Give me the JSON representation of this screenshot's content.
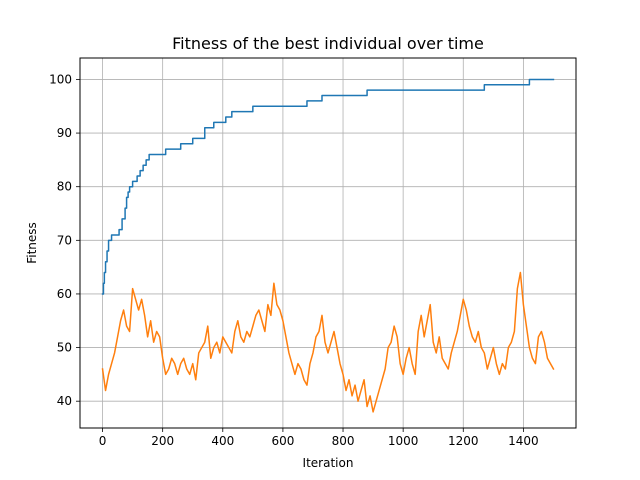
{
  "chart_data": {
    "type": "line",
    "title": "Fitness of the best individual over time",
    "xlabel": "Iteration",
    "ylabel": "Fitness",
    "xlim": [
      -75,
      1575
    ],
    "ylim": [
      35,
      104
    ],
    "xticks": [
      0,
      200,
      400,
      600,
      800,
      1000,
      1200,
      1400
    ],
    "yticks": [
      40,
      50,
      60,
      70,
      80,
      90,
      100
    ],
    "xtick_labels": [
      "0",
      "200",
      "400",
      "600",
      "800",
      "1000",
      "1200",
      "1400"
    ],
    "ytick_labels": [
      "40",
      "50",
      "60",
      "70",
      "80",
      "90",
      "100"
    ],
    "grid": true,
    "series": [
      {
        "color": "#1f77b4",
        "step": true,
        "x": [
          0,
          3,
          6,
          10,
          15,
          20,
          30,
          55,
          65,
          75,
          80,
          85,
          90,
          100,
          115,
          125,
          135,
          145,
          155,
          210,
          260,
          300,
          340,
          370,
          410,
          430,
          500,
          680,
          730,
          880,
          1270,
          1420,
          1500
        ],
        "y": [
          60,
          62,
          64,
          66,
          68,
          70,
          71,
          72,
          74,
          76,
          78,
          79,
          80,
          81,
          82,
          83,
          84,
          85,
          86,
          87,
          88,
          89,
          91,
          92,
          93,
          94,
          95,
          96,
          97,
          98,
          99,
          100,
          100
        ]
      },
      {
        "color": "#ff7f0e",
        "step": false,
        "x": [
          0,
          10,
          20,
          30,
          40,
          50,
          60,
          70,
          80,
          90,
          100,
          110,
          120,
          130,
          140,
          150,
          160,
          170,
          180,
          190,
          200,
          210,
          220,
          230,
          240,
          250,
          260,
          270,
          280,
          290,
          300,
          310,
          320,
          330,
          340,
          350,
          360,
          370,
          380,
          390,
          400,
          410,
          420,
          430,
          440,
          450,
          460,
          470,
          480,
          490,
          500,
          510,
          520,
          530,
          540,
          550,
          560,
          570,
          580,
          590,
          600,
          610,
          620,
          630,
          640,
          650,
          660,
          670,
          680,
          690,
          700,
          710,
          720,
          730,
          740,
          750,
          760,
          770,
          780,
          790,
          800,
          810,
          820,
          830,
          840,
          850,
          860,
          870,
          880,
          890,
          900,
          910,
          920,
          930,
          940,
          950,
          960,
          970,
          980,
          990,
          1000,
          1010,
          1020,
          1030,
          1040,
          1050,
          1060,
          1070,
          1080,
          1090,
          1100,
          1110,
          1120,
          1130,
          1140,
          1150,
          1160,
          1170,
          1180,
          1190,
          1200,
          1210,
          1220,
          1230,
          1240,
          1250,
          1260,
          1270,
          1280,
          1290,
          1300,
          1310,
          1320,
          1330,
          1340,
          1350,
          1360,
          1370,
          1380,
          1390,
          1400,
          1410,
          1420,
          1430,
          1440,
          1450,
          1460,
          1470,
          1480,
          1490,
          1500
        ],
        "y": [
          46,
          42,
          45,
          47,
          49,
          52,
          55,
          57,
          54,
          53,
          61,
          59,
          57,
          59,
          56,
          52,
          55,
          51,
          53,
          52,
          48,
          45,
          46,
          48,
          47,
          45,
          47,
          48,
          46,
          45,
          47,
          44,
          49,
          50,
          51,
          54,
          48,
          50,
          51,
          49,
          52,
          51,
          50,
          49,
          53,
          55,
          52,
          51,
          53,
          52,
          54,
          56,
          57,
          55,
          53,
          58,
          56,
          62,
          58,
          57,
          55,
          52,
          49,
          47,
          45,
          47,
          46,
          44,
          43,
          47,
          49,
          52,
          53,
          56,
          51,
          49,
          51,
          53,
          50,
          47,
          45,
          42,
          44,
          41,
          43,
          40,
          42,
          44,
          39,
          41,
          38,
          40,
          42,
          44,
          46,
          50,
          51,
          54,
          52,
          47,
          45,
          48,
          50,
          47,
          45,
          53,
          56,
          52,
          55,
          58,
          51,
          49,
          52,
          48,
          47,
          46,
          49,
          51,
          53,
          56,
          59,
          57,
          54,
          52,
          51,
          53,
          50,
          49,
          46,
          48,
          50,
          47,
          45,
          47,
          46,
          50,
          51,
          53,
          61,
          64,
          58,
          54,
          50,
          48,
          47,
          52,
          53,
          51,
          48,
          47,
          46
        ]
      }
    ]
  }
}
